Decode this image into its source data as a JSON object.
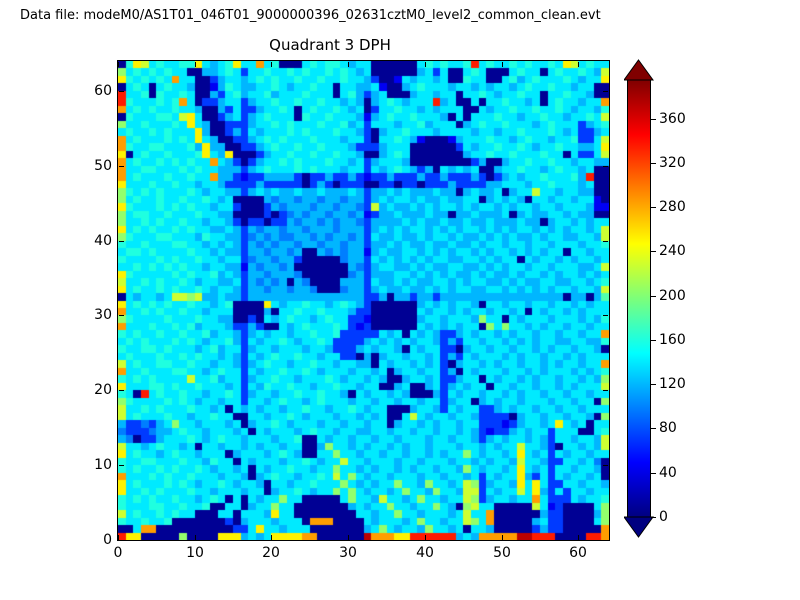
{
  "header": {
    "datafile_label": "Data file: modeM0/AS1T01_046T01_9000000396_02631cztM0_level2_common_clean.evt"
  },
  "colors": {
    "background": "#ffffff",
    "axis": "#000000",
    "colorbar_over": "#800000",
    "colorbar_under": "#000080"
  },
  "chart_data": {
    "type": "heatmap",
    "title": "Quadrant 3 DPH",
    "xlabel": "",
    "ylabel": "",
    "xlim": [
      0,
      64
    ],
    "ylim": [
      0,
      64
    ],
    "xticks": [
      0,
      10,
      20,
      30,
      40,
      50,
      60
    ],
    "yticks": [
      0,
      10,
      20,
      30,
      40,
      50,
      60
    ],
    "grid": false,
    "colormap": "jet",
    "colorbar": {
      "position": "right",
      "ticks": [
        0,
        40,
        80,
        120,
        160,
        200,
        240,
        280,
        320,
        360
      ],
      "vmin": 0,
      "vmax": 395,
      "extend": "both"
    },
    "grid_encoding": {
      "note": "64x64 detector plane histogram; each character is one pixel, rows listed top (y=63) to bottom (y=0), columns x=0..63 left to right; char->count via levels",
      "levels": {
        "0": 8,
        "1": 45,
        "2": 72,
        "3": 98,
        "4": 120,
        "5": 140,
        "6": 160,
        "7": 180,
        "8": 205,
        "9": 228,
        "a": 252,
        "b": 285,
        "c": 335,
        "d": 372
      }
    },
    "rows_top_to_bottom": [
      "06a9565566a5456a55b560005656654550000005656556c56556565565a95655",
      "8565656550044565255655656556565450000004525005650005655056556549",
      "a656565b5500245545656556556556554200154554500655005645655565455a",
      "0565056554001465445565455655055445100456555455454554565565545500",
      "c556065565004256455645556555056424500045545505565455655055655400",
      "c6555656b50224552455655655655454045654555c450050556554505655455b",
      "b565655655400425224556505655654502556554545550054556556556545546",
      "065556659a50024524565550655655541456556555405055565545565545 5659",
      "855655565a5400222455656555655645255545564555045655655545655 52456",
      "5655656555a4002425455565655565542045565554555545545565556545 2245",
      "b565556565a5400224565655565554552055654100014555655456554556 2259",
      "b6556655564a440022456556556555422245550000002545565565455655445a",
      "a0565565556a54a000245565565565540045650000000455655655565505 2259",
      "b56556565655b54202455656555655452455540000000024004556556554 5544",
      "b556655565655444245655565655545525456542405454500455655456554500",
      "b56555655655b442122444420224224212242224224222420245455655564c00",
      "a555655655455422224222220242022200220220222422224455545565554500",
      "8656565556545544245454454454445424454544454404544504559554554400",
      "8565565565565450000434434434434424545545445445504545405545545510",
      "a655565656554552000243444344344329454454545545455454554554555411",
      "8566556555655440000202343443443412445444544044544450454455454400",
      "8556565565545542022022434434344324444545445445445444544045545455",
      "a565655656554454243443443444344424545455454545545454554545455459",
      "8655566555465544234343344343443425445445455454454545445455445549",
      "6556555665545454243434434434434424454544544544545545545545554556",
      "5665655556554544244344340043434414544554545455454554545455055455",
      "6555565655655455234434420000034425454545455445545455054554545545",
      "5565656565545544143443400000004324554454544554454545545545554459",
      "a655555656556454244344430000003424445545454544545445455454554545",
      "9556565565455445243434043000044425445454455454554454544554455456",
      "a565565655654554244344344300034424544544545455445545454545545549",
      "0545545998944544244444444444444422404424424444444444444444044047",
      "a565656556554560000a54556554565420000004545455405545545545545455",
      "b556565565545550000405565565554220000005455454554554505455454555",
      "8655556555655440020545655456552210000004554555485505455545554546",
      "b555655656455542242005456555652120000005454545508585545455455455",
      "6565565565564554245455455655622222545054542245455454554554 55455b",
      "5656555656545564254556545565222245454545542425545545454554455446",
      "6556656555456455245545554554222454554054552204554554554545545540",
      "5655565565655454254565565545522040455455452425455545455455454555",
      "9565566556554554245655455655455440545545452045545455455454 55455b",
      "b556555665545655254556556545554554504554552405455545545455545456",
      "6565655559556455245565545556545545400455452245505455454554554548",
      "a555665655655545254655655455655455004500452454550554554554545559",
      "650c5655655455652455455655655405455454000425455455454554554 55455",
      "8655556565455455255456554565554554554554552455045455455545545508",
      "9556565556554505454554556554556545500045542545522454554554554555",
      "9565556554556550055455654555455454500595455455422220455455455408",
      "4223245855455545045565455545545545504554545545522212455 45a545055",
      "3222344565545554505455545655455445545545545545421224545525550056",
      "4302245556545655455545560054554554554555455455424545545425545549",
      "9554565545055455454554550048554545545455455545545455955420554549",
      "a565545655455504555456540055855455455455454558545545a54525455455",
      "6556655565546550545554556545595545554554555455454554955422554530",
      "6565565655654554505455655455855454554545545548545545a54525545540",
      "b555656556555455404565545565958545545554554554525455a42525455450",
      "a565556565455654554055455655585454558554855459824554a5a522554554",
      "a556565556554555455045565455858545545855485549925455 95a425255455",
      "6565655655456505054558550000058554955458554559824554 55b522254556",
      "6555665565560055045585500000004545585545585408955000009512000058",
      "9565565655000550555 4a550000000055455855455545955b000000422000048",
      "65565560000000204555455 50bbb00005455545855455985b000004522000058",
      "005bb0000000000225a5545550000000458545548554505540000024220 0000b",
      "caa0000080000aaa4545aaaabb000000dbbbaacccccc454bbbbbddccc0000ccb"
    ]
  }
}
